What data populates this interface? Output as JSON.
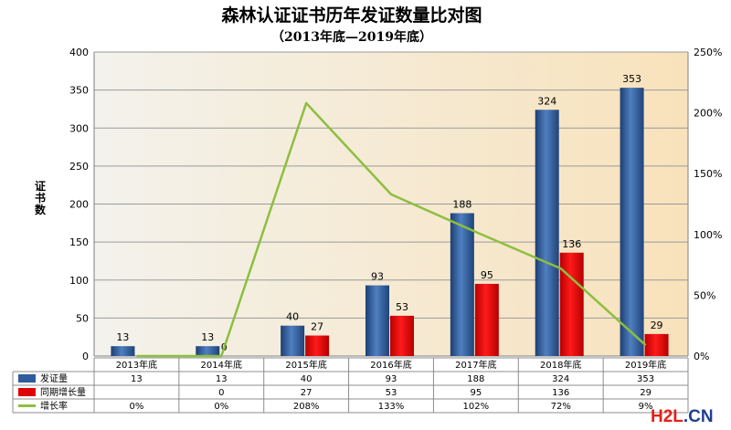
{
  "chart_data": {
    "type": "bar",
    "title": "森林认证证书历年发证数量比对图",
    "subtitle": "（2013年底—2019年底）",
    "ylabel": "证书数",
    "categories": [
      "2013年底",
      "2014年底",
      "2015年底",
      "2016年底",
      "2017年底",
      "2018年底",
      "2019年底"
    ],
    "ylim": [
      0,
      400
    ],
    "y_ticks": [
      "0",
      "50",
      "100",
      "150",
      "200",
      "250",
      "300",
      "350",
      "400"
    ],
    "y2lim": [
      0,
      2.5
    ],
    "y2_ticks": [
      "0%",
      "50%",
      "100%",
      "150%",
      "200%",
      "250%"
    ],
    "legend_placement": "table-below",
    "series": [
      {
        "name": "发证量",
        "type": "bar",
        "axis": "left",
        "color": "#2e5c9c",
        "values": [
          13,
          13,
          40,
          93,
          188,
          324,
          353
        ],
        "value_labels": [
          "13",
          "13",
          "40",
          "93",
          "188",
          "324",
          "353"
        ],
        "table_values": [
          "13",
          "13",
          "40",
          "93",
          "188",
          "324",
          "353"
        ]
      },
      {
        "name": "同期增长量",
        "type": "bar",
        "axis": "left",
        "color": "#e00000",
        "values": [
          null,
          0,
          27,
          53,
          95,
          136,
          29
        ],
        "value_labels": [
          "",
          "0",
          "27",
          "53",
          "95",
          "136",
          "29"
        ],
        "table_values": [
          "",
          "0",
          "27",
          "53",
          "95",
          "136",
          "29"
        ]
      },
      {
        "name": "增长率",
        "type": "line",
        "axis": "right",
        "color": "#8cbf3f",
        "values": [
          0,
          0,
          2.08,
          1.33,
          1.02,
          0.72,
          0.09
        ],
        "table_values": [
          "0%",
          "0%",
          "208%",
          "133%",
          "102%",
          "72%",
          "9%"
        ]
      }
    ]
  },
  "watermark": {
    "part1": "H2L",
    "part2": ".CN"
  }
}
